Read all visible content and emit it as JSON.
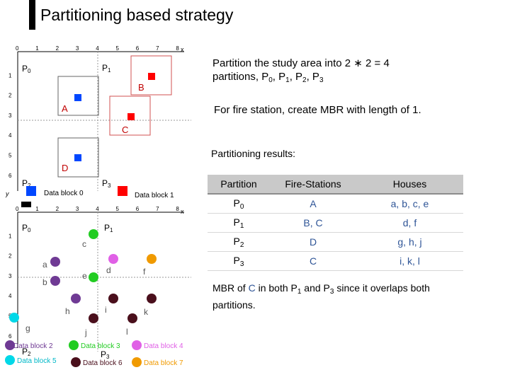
{
  "title": "Partitioning based strategy",
  "intro": {
    "line1": "Partition the study area into 2 ∗ 2 = 4",
    "line2_prefix": "partitions, P",
    "p0": "0",
    "sep1": ", P",
    "p1": "1",
    "sep2": ", P",
    "p2": "2",
    "sep3": ", P",
    "p3": "3"
  },
  "mbr_note": "For fire station, create MBR with length of 1.",
  "results_label": "Partitioning results:",
  "table": {
    "headers": [
      "Partition",
      "Fire-Stations",
      "Houses"
    ],
    "rows": [
      {
        "p": "P",
        "sub": "0",
        "fire": "A",
        "houses": "a, b, c, e"
      },
      {
        "p": "P",
        "sub": "1",
        "fire": "B, C",
        "houses": "d, f"
      },
      {
        "p": "P",
        "sub": "2",
        "fire": "D",
        "houses": "g, h, j"
      },
      {
        "p": "P",
        "sub": "3",
        "fire": "C",
        "houses": "i, k, l"
      }
    ]
  },
  "footnote": {
    "a": "MBR of ",
    "c": "C",
    "b": " in both P",
    "s1": "1",
    "d": " and P",
    "s3": "3",
    "e": " since it overlaps both",
    "line2": "partitions."
  },
  "grid": {
    "x_ticks": [
      "0",
      "1",
      "2",
      "3",
      "4",
      "5",
      "6",
      "7",
      "8"
    ],
    "y_ticks": [
      "0",
      "1",
      "2",
      "3",
      "4",
      "5",
      "6"
    ],
    "x_label": "x",
    "y_label": "y"
  },
  "top_diagram": {
    "partitions": [
      {
        "base": "P",
        "sub": "0"
      },
      {
        "base": "P",
        "sub": "1"
      },
      {
        "base": "P",
        "sub": "2"
      },
      {
        "base": "P",
        "sub": "3"
      }
    ],
    "stations": [
      "A",
      "B",
      "C",
      "D"
    ],
    "station_color": "#ff0000",
    "legend": [
      "Data block 0",
      "Data block 1"
    ],
    "legend_colors": [
      "#0047ff",
      "#ff0000"
    ]
  },
  "bottom_diagram": {
    "partitions": [
      {
        "base": "P",
        "sub": "0"
      },
      {
        "base": "P",
        "sub": "1"
      },
      {
        "base": "P",
        "sub": "2"
      },
      {
        "base": "P",
        "sub": "3"
      }
    ],
    "houses": [
      "a",
      "b",
      "c",
      "d",
      "e",
      "f",
      "g",
      "h",
      "i",
      "j",
      "k",
      "l"
    ],
    "legend": [
      "Data block 2",
      "Data block 3",
      "Data block 4",
      "Data block 5",
      "Data block 6",
      "Data block 7"
    ],
    "block_colors": {
      "block2": "#6f3a94",
      "block3": "#22cc22",
      "block4": "#e060e6",
      "block5": "#00d8e8",
      "block6": "#4a0f1c",
      "block7": "#f09a00"
    }
  }
}
